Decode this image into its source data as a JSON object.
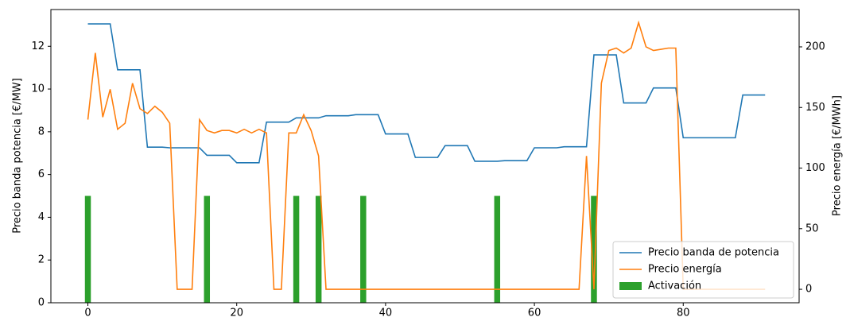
{
  "chart_data": {
    "type": "line-bar-dual",
    "x": [
      0,
      1,
      2,
      3,
      4,
      5,
      6,
      7,
      8,
      9,
      10,
      11,
      12,
      13,
      14,
      15,
      16,
      17,
      18,
      19,
      20,
      21,
      22,
      23,
      24,
      25,
      26,
      27,
      28,
      29,
      30,
      31,
      32,
      33,
      34,
      35,
      36,
      37,
      38,
      39,
      40,
      41,
      42,
      43,
      44,
      45,
      46,
      47,
      48,
      49,
      50,
      51,
      52,
      53,
      54,
      55,
      56,
      57,
      58,
      59,
      60,
      61,
      62,
      63,
      64,
      65,
      66,
      67,
      68,
      69,
      70,
      71,
      72,
      73,
      74,
      75,
      76,
      77,
      78,
      79,
      80,
      81,
      82,
      83,
      84,
      85,
      86,
      87,
      88,
      89,
      90,
      91
    ],
    "series": [
      {
        "name": "Precio banda de potencia",
        "color": "#1f77b4",
        "axis": "y",
        "values": [
          13.05,
          13.05,
          13.05,
          13.05,
          10.9,
          10.9,
          10.9,
          10.9,
          7.28,
          7.28,
          7.28,
          7.25,
          7.25,
          7.25,
          7.25,
          7.25,
          6.9,
          6.9,
          6.9,
          6.9,
          6.55,
          6.55,
          6.55,
          6.55,
          8.45,
          8.45,
          8.45,
          8.45,
          8.65,
          8.65,
          8.65,
          8.65,
          8.75,
          8.75,
          8.75,
          8.75,
          8.8,
          8.8,
          8.8,
          8.8,
          7.9,
          7.9,
          7.9,
          7.9,
          6.8,
          6.8,
          6.8,
          6.8,
          7.35,
          7.35,
          7.35,
          7.35,
          6.62,
          6.62,
          6.62,
          6.62,
          6.65,
          6.65,
          6.65,
          6.65,
          7.25,
          7.25,
          7.25,
          7.25,
          7.3,
          7.3,
          7.3,
          7.3,
          11.6,
          11.6,
          11.6,
          11.6,
          9.35,
          9.35,
          9.35,
          9.35,
          10.05,
          10.05,
          10.05,
          10.05,
          7.72,
          7.72,
          7.72,
          7.72,
          7.72,
          7.72,
          7.72,
          7.72,
          9.72,
          9.72,
          9.72,
          9.72
        ]
      },
      {
        "name": "Precio energía",
        "color": "#ff7f0e",
        "axis": "y2",
        "values": [
          140,
          195,
          142,
          165,
          132,
          137,
          170,
          149,
          145,
          151,
          146,
          137,
          0,
          0,
          0,
          140,
          131,
          129,
          131,
          131,
          129,
          132,
          129,
          132,
          129,
          0,
          0,
          129,
          129,
          144,
          131,
          110,
          0,
          0,
          0,
          0,
          0,
          0,
          0,
          0,
          0,
          0,
          0,
          0,
          0,
          0,
          0,
          0,
          0,
          0,
          0,
          0,
          0,
          0,
          0,
          0,
          0,
          0,
          0,
          0,
          0,
          0,
          0,
          0,
          0,
          0,
          0,
          110,
          0,
          170,
          197,
          199,
          195,
          199,
          220,
          200,
          197,
          198,
          199,
          199,
          0,
          0,
          0,
          0,
          0,
          0,
          0,
          0,
          0,
          0,
          0,
          0
        ]
      }
    ],
    "bars": {
      "name": "Activación",
      "color": "#2ca02c",
      "x": [
        0,
        16,
        28,
        31,
        37,
        55,
        68
      ],
      "values": [
        5,
        5,
        5,
        5,
        5,
        5,
        5
      ]
    },
    "ylabel": "Precio banda potencia [€/MW]",
    "y2label": "Precio energía [€/MWh]",
    "xlim": [
      -4.97,
      95.57
    ],
    "xticks": [
      0,
      20,
      40,
      60,
      80
    ],
    "ylim": [
      0,
      13.72
    ],
    "yticks": [
      0,
      2,
      4,
      6,
      8,
      10,
      12
    ],
    "y2lim": [
      -11.1,
      230.8
    ],
    "y2ticks": [
      0,
      50,
      100,
      150,
      200
    ],
    "legend": "lower right"
  }
}
